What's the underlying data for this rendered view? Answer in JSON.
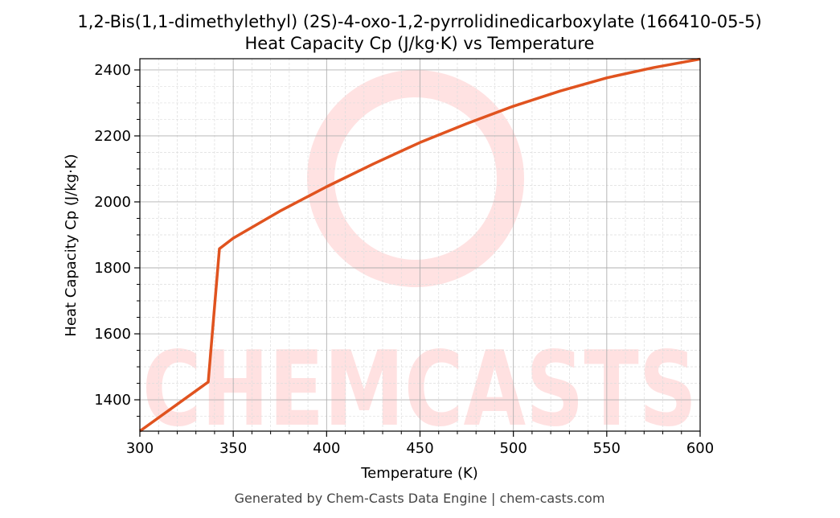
{
  "chart_data": {
    "type": "line",
    "title": "1,2-Bis(1,1-dimethylethyl) (2S)-4-oxo-1,2-pyrrolidinedicarboxylate (166410-05-5)",
    "subtitle": "Heat Capacity Cp (J/kg·K) vs Temperature",
    "xlabel": "Temperature (K)",
    "ylabel": "Heat Capacity Cp (J/kg·K)",
    "xlim": [
      300,
      600
    ],
    "ylim": [
      1305,
      2434
    ],
    "xticks": [
      300,
      350,
      400,
      450,
      500,
      550,
      600
    ],
    "yticks": [
      1400,
      1600,
      1800,
      2000,
      2200,
      2400
    ],
    "grid": true,
    "series": [
      {
        "name": "Cp",
        "color": "#e0531f",
        "x": [
          300,
          336.6,
          342.6,
          350,
          375,
          400,
          425,
          450,
          475,
          500,
          525,
          550,
          575,
          600
        ],
        "y": [
          1305,
          1454,
          1858,
          1890,
          1972,
          2046,
          2115,
          2180,
          2237,
          2290,
          2336,
          2376,
          2407,
          2433
        ]
      }
    ],
    "watermark": "CHEMCASTS",
    "footer": "Generated by Chem-Casts Data Engine | chem-casts.com"
  }
}
